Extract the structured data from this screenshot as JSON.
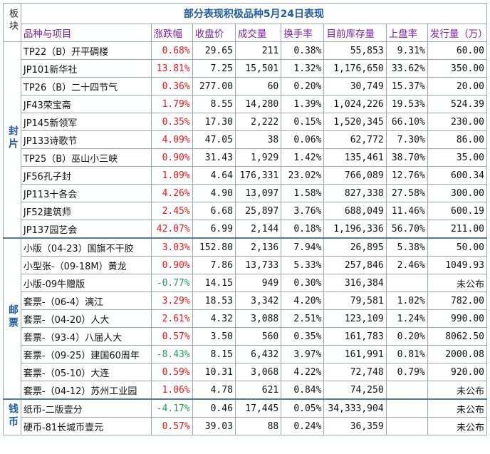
{
  "title": "部分表现积极品种5月24日表现",
  "block_header": "板块",
  "headers": [
    "品种与项目",
    "涨跌幅",
    "收盘价",
    "成交量",
    "换手率",
    "目前库存量",
    "上盘率",
    "发行量（万）"
  ],
  "groups": [
    {
      "name": "封片",
      "rows": [
        {
          "name": "TP22（B）开平碉楼",
          "change": "0.68%",
          "dir": "up",
          "close": "29.65",
          "volume": "211",
          "turnover": "0.38%",
          "stock": "55,853",
          "rate": "9.31%",
          "issue": "60.00"
        },
        {
          "name": "JP101新华社",
          "change": "13.81%",
          "dir": "up",
          "close": "7.25",
          "volume": "15,501",
          "turnover": "1.32%",
          "stock": "1,176,650",
          "rate": "33.62%",
          "issue": "350.00"
        },
        {
          "name": "TP26（B）二十四节气",
          "change": "0.36%",
          "dir": "up",
          "close": "277.00",
          "volume": "60",
          "turnover": "0.20%",
          "stock": "30,749",
          "rate": "15.37%",
          "issue": "20.00"
        },
        {
          "name": "JF43荣宝斋",
          "change": "1.79%",
          "dir": "up",
          "close": "8.55",
          "volume": "14,280",
          "turnover": "1.39%",
          "stock": "1,024,226",
          "rate": "19.53%",
          "issue": "524.39"
        },
        {
          "name": "JP145新领军",
          "change": "0.35%",
          "dir": "up",
          "close": "17.30",
          "volume": "2,222",
          "turnover": "0.15%",
          "stock": "1,520,345",
          "rate": "66.10%",
          "issue": "230.00"
        },
        {
          "name": "JP133诗歌节",
          "change": "4.09%",
          "dir": "up",
          "close": "47.05",
          "volume": "38",
          "turnover": "0.06%",
          "stock": "62,772",
          "rate": "7.30%",
          "issue": "86.00"
        },
        {
          "name": "TP25（B）巫山小三峡",
          "change": "0.90%",
          "dir": "up",
          "close": "31.43",
          "volume": "1,929",
          "turnover": "1.42%",
          "stock": "135,461",
          "rate": "38.70%",
          "issue": "35.00"
        },
        {
          "name": "JF56孔子封",
          "change": "1.09%",
          "dir": "up",
          "close": "4.64",
          "volume": "176,331",
          "turnover": "23.02%",
          "stock": "766,089",
          "rate": "12.76%",
          "issue": "600.34"
        },
        {
          "name": "JP113十各会",
          "change": "4.26%",
          "dir": "up",
          "close": "4.90",
          "volume": "13,097",
          "turnover": "1.58%",
          "stock": "827,338",
          "rate": "27.58%",
          "issue": "300.00"
        },
        {
          "name": "JF52建筑师",
          "change": "2.45%",
          "dir": "up",
          "close": "6.68",
          "volume": "25,897",
          "turnover": "3.76%",
          "stock": "688,049",
          "rate": "11.46%",
          "issue": "600.19"
        },
        {
          "name": "JP137园艺会",
          "change": "42.07%",
          "dir": "up",
          "close": "6.99",
          "volume": "2,144",
          "turnover": "0.18%",
          "stock": "1,196,336",
          "rate": "56.70%",
          "issue": "211.00"
        }
      ]
    },
    {
      "name": "邮票",
      "rows": [
        {
          "name": "小版（04-23）国旗不干胶",
          "change": "3.03%",
          "dir": "up",
          "close": "152.80",
          "volume": "2,136",
          "turnover": "7.94%",
          "stock": "26,895",
          "rate": "5.38%",
          "issue": "50.00"
        },
        {
          "name": "小型张-（09-18M）黄龙",
          "change": "0.90%",
          "dir": "up",
          "close": "7.86",
          "volume": "13,733",
          "turnover": "5.33%",
          "stock": "257,846",
          "rate": "2.46%",
          "issue": "1049.93"
        },
        {
          "name": "小版-09牛赠版",
          "change": "-0.77%",
          "dir": "down",
          "close": "14.15",
          "volume": "949",
          "turnover": "0.30%",
          "stock": "316,384",
          "rate": "",
          "issue": "未公布"
        },
        {
          "name": "套票-（06-4）漓江",
          "change": "3.29%",
          "dir": "up",
          "close": "18.53",
          "volume": "3,342",
          "turnover": "4.20%",
          "stock": "79,581",
          "rate": "1.02%",
          "issue": "782.00"
        },
        {
          "name": "套票-（04-20）人大",
          "change": "2.61%",
          "dir": "up",
          "close": "4.32",
          "volume": "3,088",
          "turnover": "2.51%",
          "stock": "123,109",
          "rate": "1.24%",
          "issue": "990.00"
        },
        {
          "name": "套票-（93-4）八届人大",
          "change": "0.57%",
          "dir": "up",
          "close": "3.50",
          "volume": "560",
          "turnover": "0.35%",
          "stock": "161,783",
          "rate": "0.20%",
          "issue": "8062.50"
        },
        {
          "name": "套票-（09-25）建国60周年",
          "change": "-8.43%",
          "dir": "down",
          "close": "8.15",
          "volume": "6,432",
          "turnover": "3.97%",
          "stock": "161,991",
          "rate": "0.81%",
          "issue": "2000.08"
        },
        {
          "name": "套票-（05-10）大连",
          "change": "0.59%",
          "dir": "up",
          "close": "10.31",
          "volume": "3,068",
          "turnover": "4.22%",
          "stock": "72,748",
          "rate": "0.79%",
          "issue": "920.00"
        },
        {
          "name": "套票-（04-12）苏州工业园",
          "change": "1.06%",
          "dir": "up",
          "close": "4.78",
          "volume": "621",
          "turnover": "0.84%",
          "stock": "74,250",
          "rate": "",
          "issue": "未公布"
        }
      ]
    },
    {
      "name": "钱币",
      "rows": [
        {
          "name": "纸币-二版壹分",
          "change": "-4.17%",
          "dir": "down",
          "close": "0.46",
          "volume": "17,445",
          "turnover": "0.05%",
          "stock": "34,333,904",
          "rate": "",
          "issue": "未公布"
        },
        {
          "name": "硬币-81长城币壹元",
          "change": "0.57%",
          "dir": "up",
          "close": "39.03",
          "volume": "88",
          "turnover": "0.24%",
          "stock": "36,359",
          "rate": "",
          "issue": "未公布"
        }
      ]
    }
  ]
}
